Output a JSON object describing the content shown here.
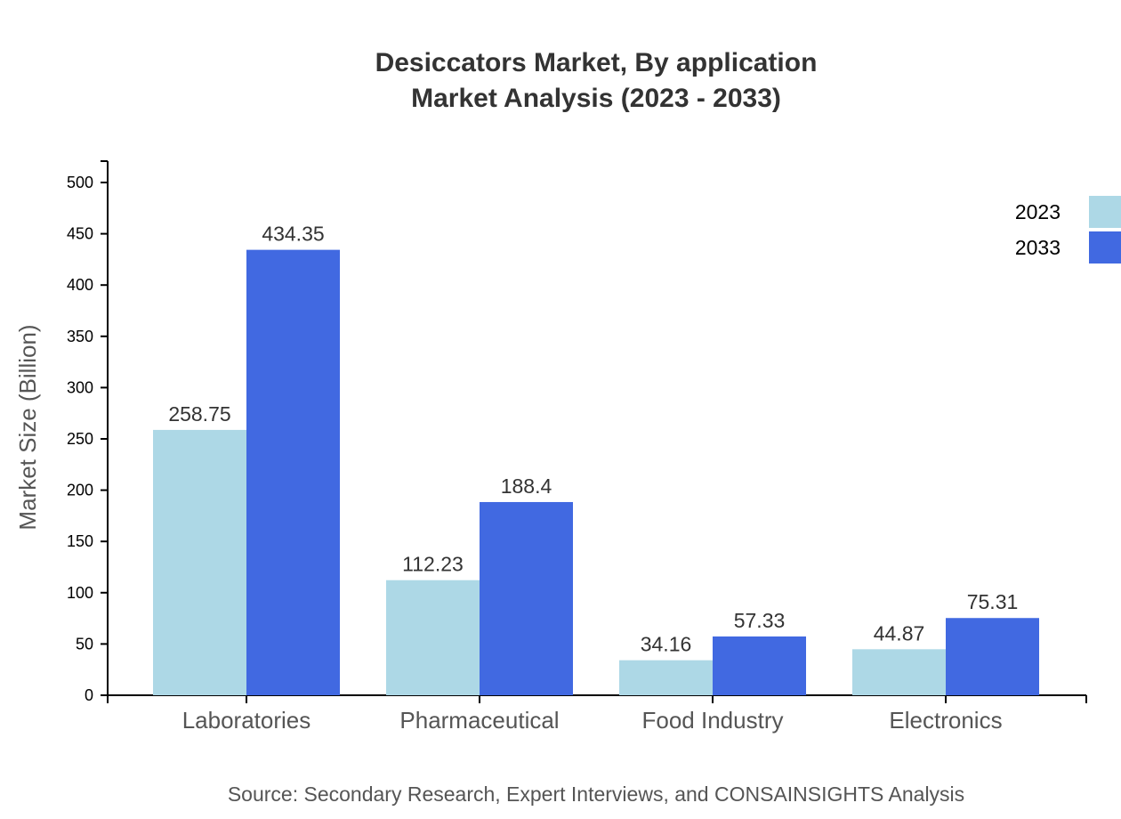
{
  "chart_data": {
    "type": "bar",
    "title": "Desiccators Market, By application",
    "subtitle": "Market Analysis (2023 - 2033)",
    "xlabel": "",
    "ylabel": "Market Size (Billion)",
    "ylim": [
      0,
      520
    ],
    "yticks": [
      0,
      50,
      100,
      150,
      200,
      250,
      300,
      350,
      400,
      450,
      500
    ],
    "categories": [
      "Laboratories",
      "Pharmaceutical",
      "Food Industry",
      "Electronics"
    ],
    "series": [
      {
        "name": "2023",
        "color": "#ADD8E6",
        "values": [
          258.75,
          112.23,
          34.16,
          44.87
        ]
      },
      {
        "name": "2033",
        "color": "#4169E1",
        "values": [
          434.35,
          188.4,
          57.33,
          75.31
        ]
      }
    ],
    "legend_position": "top-right",
    "grid": false,
    "source": "Source: Secondary Research, Expert Interviews, and CONSAINSIGHTS Analysis"
  }
}
